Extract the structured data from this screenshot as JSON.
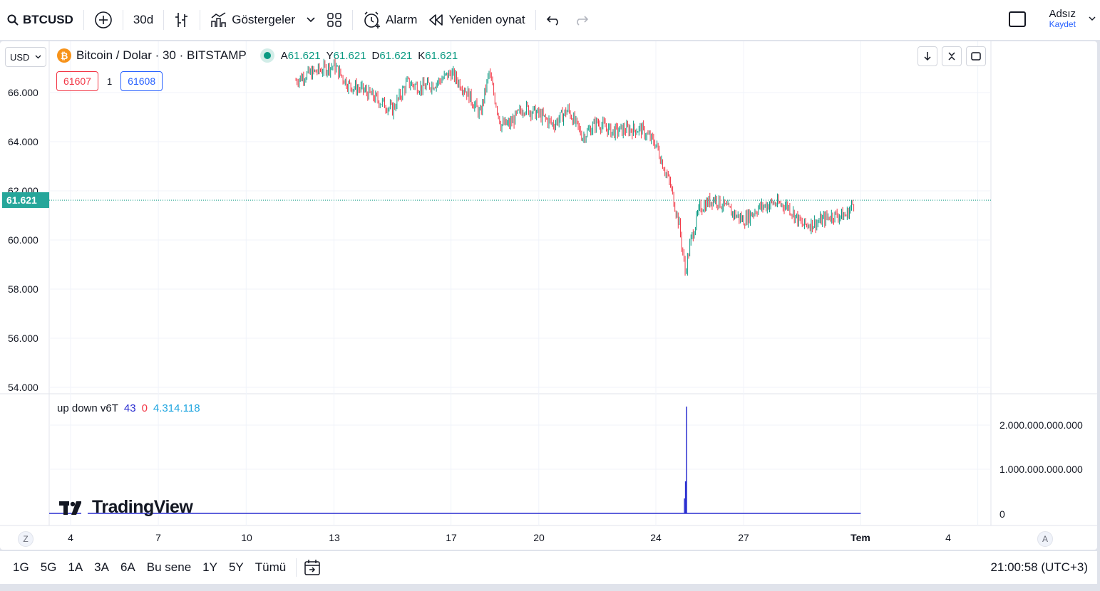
{
  "toolbar": {
    "symbol": "BTCUSD",
    "interval": "30d",
    "indicators_label": "Göstergeler",
    "alarm_label": "Alarm",
    "replay_label": "Yeniden oynat",
    "layout_name": "Adsız",
    "save_label": "Kaydet"
  },
  "chart": {
    "currency": "USD",
    "title_parts": [
      "Bitcoin",
      "/",
      "Dolar · 30 · BITSTAMP"
    ],
    "ohlc": [
      {
        "k": "A",
        "v": "61.621"
      },
      {
        "k": "Y",
        "v": "61.621"
      },
      {
        "k": "D",
        "v": "61.621"
      },
      {
        "k": "K",
        "v": "61.621"
      }
    ],
    "bid": "61607",
    "spread": "1",
    "ask": "61608",
    "last_price": "61.621",
    "price_axis": [
      "66.000",
      "64.000",
      "62.000",
      "60.000",
      "58.000",
      "56.000",
      "54.000"
    ],
    "indicator": {
      "name": "up down v6T",
      "v1": "43",
      "v2": "0",
      "v3": "4.314.118",
      "axis": [
        "2.000.000.000.000",
        "1.000.000.000.000",
        "0"
      ]
    },
    "time_axis": [
      "4",
      "7",
      "10",
      "13",
      "17",
      "20",
      "24",
      "27",
      "Tem",
      "4"
    ],
    "scale_left": "Z",
    "scale_right": "A",
    "logo": "TradingView"
  },
  "bottom": {
    "ranges": [
      "1G",
      "5G",
      "1A",
      "3A",
      "6A",
      "Bu sene",
      "1Y",
      "5Y",
      "Tümü"
    ],
    "clock": "21:00:58 (UTC+3)"
  },
  "colors": {
    "up": "#089981",
    "down": "#f23645",
    "volume": "#2a2ed0",
    "accent": "#2962ff"
  },
  "chart_data": {
    "type": "candlestick",
    "series": [
      {
        "name": "BTCUSD",
        "values": [
          [
            11.7,
            66500
          ],
          [
            12,
            66700
          ],
          [
            13,
            67100
          ],
          [
            13.5,
            66300
          ],
          [
            14,
            66100
          ],
          [
            14.5,
            65700
          ],
          [
            15,
            65300
          ],
          [
            15.5,
            66400
          ],
          [
            16,
            66200
          ],
          [
            16.5,
            66400
          ],
          [
            17,
            66800
          ],
          [
            17.5,
            66100
          ],
          [
            18,
            65100
          ],
          [
            18.3,
            66800
          ],
          [
            18.7,
            64700
          ],
          [
            19,
            64700
          ],
          [
            19.5,
            65400
          ],
          [
            20,
            65100
          ],
          [
            20.5,
            64700
          ],
          [
            21,
            65300
          ],
          [
            21.5,
            64200
          ],
          [
            22,
            64800
          ],
          [
            22.5,
            64400
          ],
          [
            23,
            64500
          ],
          [
            23.5,
            64500
          ],
          [
            24,
            63900
          ],
          [
            24.5,
            62200
          ],
          [
            24.8,
            60600
          ],
          [
            25,
            58700
          ],
          [
            25.2,
            60000
          ],
          [
            25.5,
            61300
          ],
          [
            26,
            61700
          ],
          [
            26.5,
            61200
          ],
          [
            27,
            60800
          ],
          [
            27.5,
            61300
          ],
          [
            28,
            61500
          ],
          [
            28.5,
            61400
          ],
          [
            29,
            60600
          ],
          [
            29.5,
            60700
          ],
          [
            30,
            61000
          ],
          [
            30.5,
            61000
          ],
          [
            30.8,
            61600
          ]
        ]
      }
    ],
    "ylim": [
      54000,
      67200
    ]
  }
}
